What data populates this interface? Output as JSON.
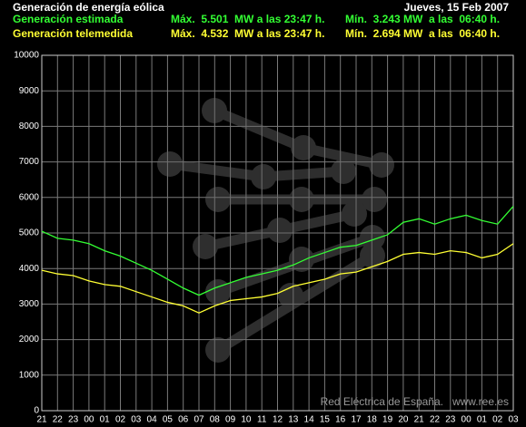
{
  "chart_data": {
    "type": "line",
    "title": "Generación de energía eólica",
    "date": "Jueves, 15 Feb 2007",
    "stats": [
      {
        "max": "Máx.  5.501  MW a las 23:47 h.",
        "min": "Mín.  3.243 MW  a las  06:40 h."
      },
      {
        "max": "Máx.  4.532  MW a las 23:47 h.",
        "min": "Mín.  2.694 MW  a las  06:40 h."
      }
    ],
    "source": "Red Eléctrica de España.   www.ree.es",
    "categories": [
      "21",
      "22",
      "23",
      "00",
      "01",
      "02",
      "03",
      "04",
      "05",
      "06",
      "07",
      "08",
      "09",
      "10",
      "11",
      "12",
      "13",
      "14",
      "15",
      "16",
      "17",
      "18",
      "19",
      "20",
      "21",
      "22",
      "23",
      "00",
      "01",
      "02",
      "03"
    ],
    "series": [
      {
        "name": "Generación estimada",
        "color": "#33ff33",
        "values": [
          5050,
          4850,
          4800,
          4700,
          4500,
          4350,
          4150,
          3950,
          3700,
          3450,
          3250,
          3450,
          3600,
          3750,
          3850,
          3950,
          4100,
          4300,
          4450,
          4600,
          4650,
          4800,
          4950,
          5300,
          5400,
          5250,
          5400,
          5500,
          5350,
          5250,
          5750
        ]
      },
      {
        "name": "Generación telemedida",
        "color": "#ffff33",
        "values": [
          3950,
          3850,
          3800,
          3650,
          3550,
          3500,
          3350,
          3200,
          3050,
          2950,
          2750,
          2950,
          3100,
          3150,
          3200,
          3300,
          3500,
          3600,
          3700,
          3850,
          3900,
          4050,
          4200,
          4400,
          4450,
          4400,
          4500,
          4450,
          4300,
          4400,
          4700
        ]
      }
    ],
    "ylim": [
      0,
      10000
    ],
    "yticks": [
      0,
      1000,
      2000,
      3000,
      4000,
      5000,
      6000,
      7000,
      8000,
      9000,
      10000
    ],
    "grid": true
  }
}
